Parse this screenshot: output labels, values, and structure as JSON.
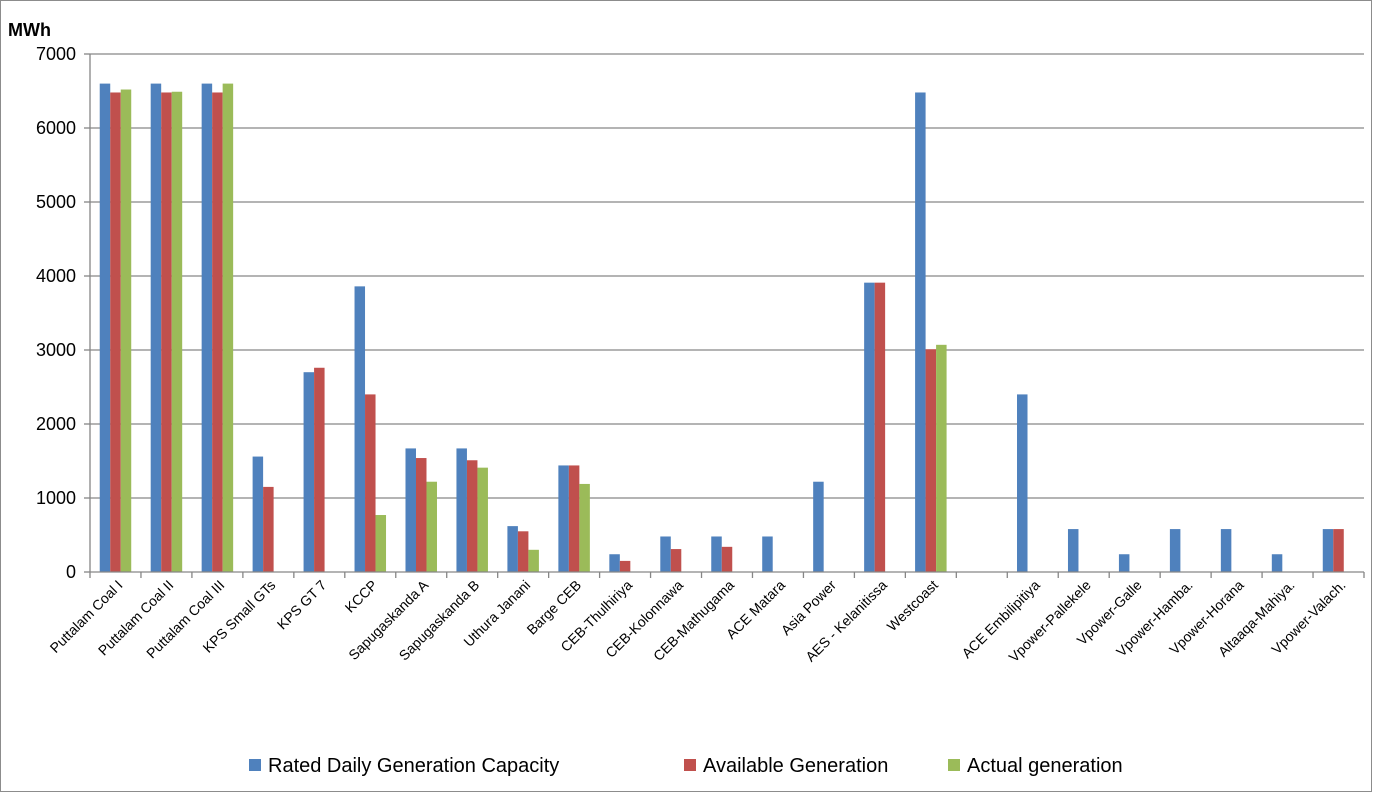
{
  "chart_data": {
    "type": "bar",
    "y_unit_label": "MWh",
    "ylim": [
      0,
      7000
    ],
    "yticks": [
      0,
      1000,
      2000,
      3000,
      4000,
      5000,
      6000,
      7000
    ],
    "grid": true,
    "legend_position": "bottom",
    "categories": [
      "Puttalam Coal I",
      "Puttalam Coal II",
      "Puttalam Coal III",
      "KPS Small GTs",
      "KPS GT 7",
      "KCCP",
      "Sapugaskanda A",
      "Sapugaskanda B",
      "Uthura Janani",
      "Barge CEB",
      "CEB-Thulhiriya",
      "CEB-Kolonnawa",
      "CEB-Mathugama",
      "ACE Matara",
      "Asia Power",
      "AES - Kelanitissa",
      "Westcoast",
      "",
      "ACE Embilipitiya",
      "Vpower-Pallekele",
      "Vpower-Galle",
      "Vpower-Hamba.",
      "Vpower-Horana",
      "Altaaqa-Mahiya.",
      "Vpower-Valach."
    ],
    "series": [
      {
        "name": "Rated Daily Generation Capacity",
        "color": "#4f81bd",
        "values": [
          6600,
          6600,
          6600,
          1560,
          2700,
          3860,
          1670,
          1670,
          620,
          1440,
          240,
          480,
          480,
          480,
          1220,
          3910,
          6480,
          0,
          2400,
          580,
          240,
          580,
          580,
          240,
          580
        ]
      },
      {
        "name": "Available Generation",
        "color": "#c0504d",
        "values": [
          6480,
          6480,
          6480,
          1150,
          2760,
          2400,
          1540,
          1510,
          550,
          1440,
          150,
          310,
          340,
          0,
          0,
          3910,
          3010,
          0,
          0,
          0,
          0,
          0,
          0,
          0,
          580
        ]
      },
      {
        "name": "Actual generation",
        "color": "#9bbb59",
        "values": [
          6520,
          6490,
          6600,
          0,
          0,
          770,
          1220,
          1410,
          300,
          1190,
          0,
          0,
          0,
          0,
          0,
          0,
          3070,
          0,
          0,
          0,
          0,
          0,
          0,
          0,
          0
        ]
      }
    ]
  }
}
